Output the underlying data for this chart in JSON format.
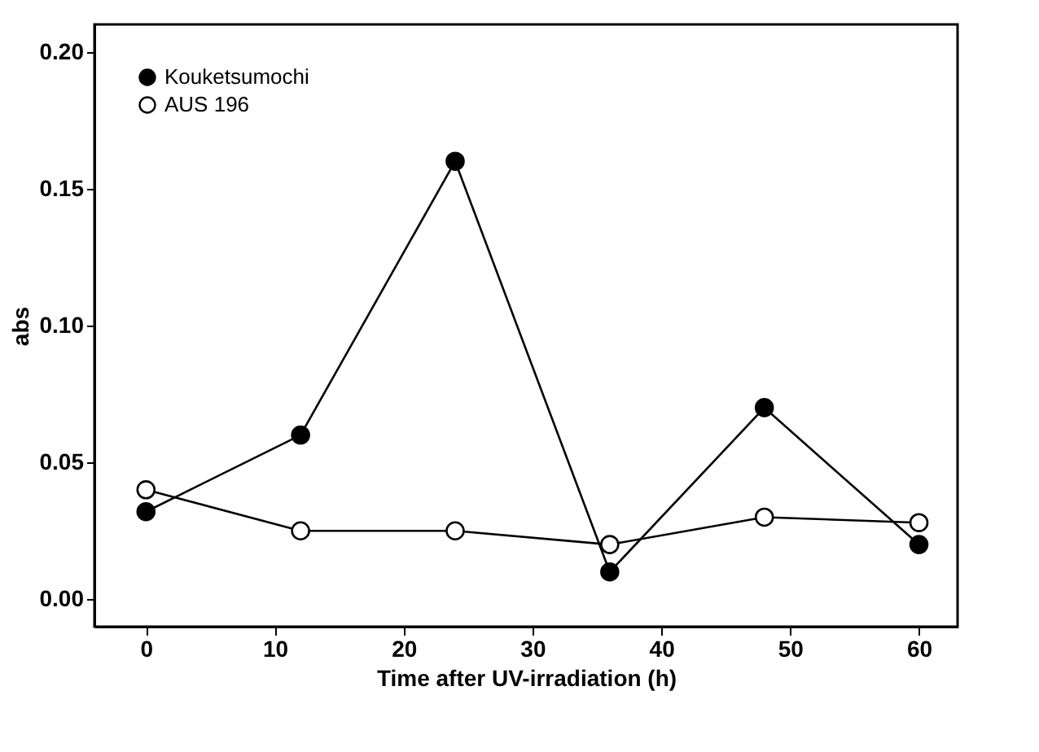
{
  "chart_data": {
    "type": "line",
    "xlabel": "Time after UV-irradiation (h)",
    "ylabel": "abs",
    "x": [
      0,
      12,
      24,
      36,
      48,
      60
    ],
    "series": [
      {
        "name": "Kouketsumochi",
        "color": "#000000",
        "values": [
          0.032,
          0.06,
          0.16,
          0.01,
          0.07,
          0.02
        ]
      },
      {
        "name": "AUS 196",
        "color": "#ffffff",
        "values": [
          0.04,
          0.025,
          0.025,
          0.02,
          0.03,
          0.028
        ]
      }
    ],
    "xlim": [
      -4,
      63
    ],
    "xticks": [
      0,
      10,
      20,
      30,
      40,
      50,
      60
    ],
    "ylim": [
      -0.01,
      0.21
    ],
    "yticks": [
      {
        "value": 0,
        "label": "0.00"
      },
      {
        "value": 0.05,
        "label": "0.05"
      },
      {
        "value": 0.1,
        "label": "0.10"
      },
      {
        "value": 0.15,
        "label": "0.15"
      },
      {
        "value": 0.2,
        "label": "0.20"
      }
    ],
    "grid": false,
    "legend": "top left",
    "marker": "circle",
    "line_style": "solid"
  }
}
